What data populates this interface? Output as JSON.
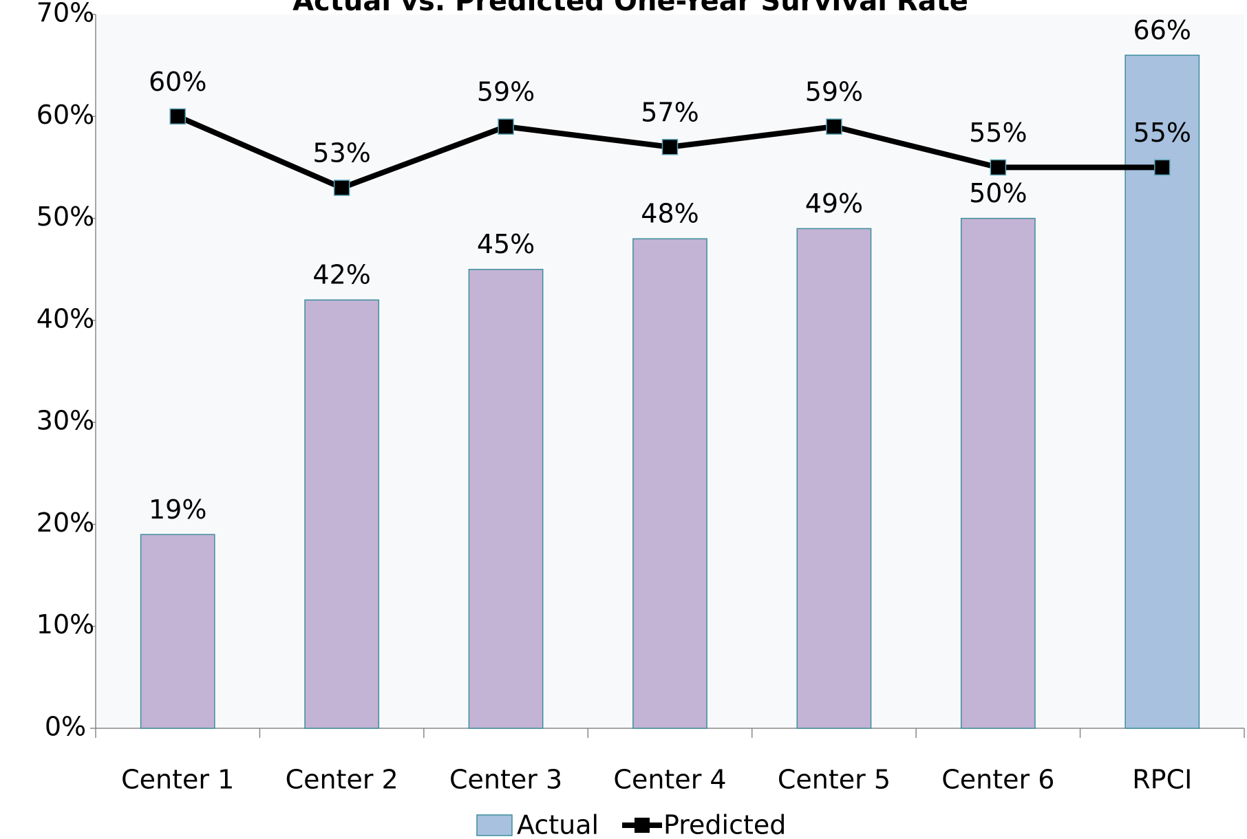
{
  "chart_data": {
    "type": "bar_line",
    "title": "Actual vs. Predicted One-Year Survival Rate",
    "categories": [
      "Center 1",
      "Center 2",
      "Center 3",
      "Center 4",
      "Center 5",
      "Center 6",
      "RPCI"
    ],
    "series": [
      {
        "name": "Actual",
        "type": "bar",
        "color": "#a7c1df",
        "point_colors": [
          "#c3b3d4",
          "#c3b3d4",
          "#c3b3d4",
          "#c3b3d4",
          "#c3b3d4",
          "#c3b3d4",
          "#a7c1df"
        ],
        "values": [
          19,
          42,
          45,
          48,
          49,
          50,
          66
        ],
        "value_labels": [
          "19%",
          "42%",
          "45%",
          "48%",
          "49%",
          "50%",
          "66%"
        ]
      },
      {
        "name": "Predicted",
        "type": "line",
        "color": "#000000",
        "values": [
          60,
          53,
          59,
          57,
          59,
          55,
          55
        ],
        "value_labels": [
          "60%",
          "53%",
          "59%",
          "57%",
          "59%",
          "55%",
          "55%"
        ]
      }
    ],
    "ylim": [
      0,
      70
    ],
    "yticks": [
      {
        "value": 0,
        "label": "0%"
      },
      {
        "value": 10,
        "label": "10%"
      },
      {
        "value": 20,
        "label": "20%"
      },
      {
        "value": 30,
        "label": "30%"
      },
      {
        "value": 40,
        "label": "40%"
      },
      {
        "value": 50,
        "label": "50%"
      },
      {
        "value": 60,
        "label": "60%"
      },
      {
        "value": 70,
        "label": "70%"
      }
    ],
    "legend": "bottom"
  }
}
